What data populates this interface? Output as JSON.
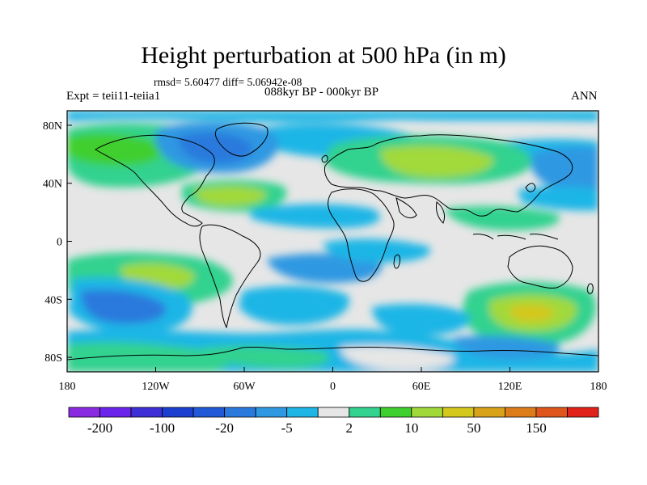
{
  "title": "Height perturbation at 500 hPa (in m)",
  "stats": "rmsd= 5.60477 diff= 5.06942e-08",
  "expt": "Expt = teii11-teiia1",
  "period": "088kyr BP - 000kyr BP",
  "season": "ANN",
  "y_ticks": [
    {
      "label": "80N",
      "lat": 80
    },
    {
      "label": "40N",
      "lat": 40
    },
    {
      "label": "0",
      "lat": 0
    },
    {
      "label": "40S",
      "lat": -40
    },
    {
      "label": "80S",
      "lat": -80
    }
  ],
  "x_ticks": [
    {
      "label": "180",
      "lon": -180
    },
    {
      "label": "120W",
      "lon": -120
    },
    {
      "label": "60W",
      "lon": -60
    },
    {
      "label": "0",
      "lon": 0
    },
    {
      "label": "60E",
      "lon": 60
    },
    {
      "label": "120E",
      "lon": 120
    },
    {
      "label": "180",
      "lon": 180
    }
  ],
  "colorbar": {
    "colors": [
      "#8a2be2",
      "#6a24ea",
      "#3f2fd6",
      "#1d3fd0",
      "#2159d6",
      "#2a79dd",
      "#2f98e2",
      "#1fb6e6",
      "#e6e6e6",
      "#33d28f",
      "#3fcf2e",
      "#a2d93a",
      "#d4c81c",
      "#d9a319",
      "#dd7d1a",
      "#de561b",
      "#e0221a"
    ],
    "labels": [
      {
        "text": "-200",
        "boundary": 1
      },
      {
        "text": "-100",
        "boundary": 3
      },
      {
        "text": "-20",
        "boundary": 5
      },
      {
        "text": "-5",
        "boundary": 7
      },
      {
        "text": "2",
        "boundary": 9
      },
      {
        "text": "10",
        "boundary": 11
      },
      {
        "text": "50",
        "boundary": 13
      },
      {
        "text": "150",
        "boundary": 15
      }
    ]
  }
}
